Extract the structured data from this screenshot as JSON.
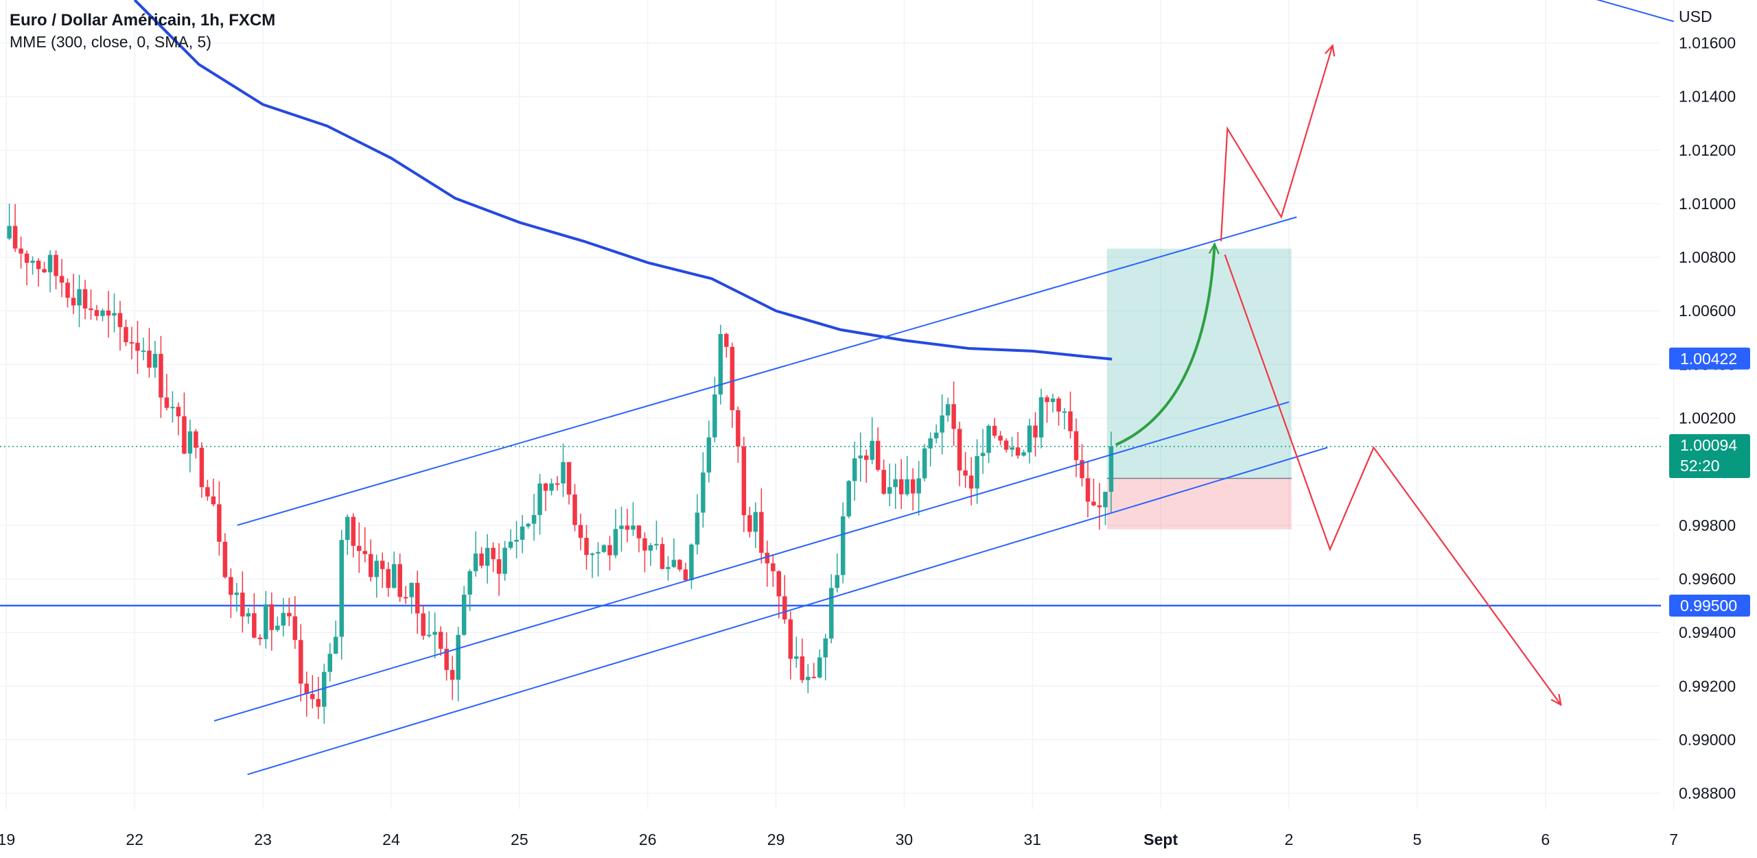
{
  "legend": {
    "title": "Euro / Dollar Américain, 1h, FXCM",
    "indicator": "MME (300, close, 0, SMA, 5)"
  },
  "colors": {
    "up": "#26a69a",
    "down": "#f23645",
    "ma": "#2449e0",
    "trendline": "#2962ff",
    "projection": "#f23645",
    "arrow_green": "#2ea043",
    "grid": "#f0f3fa",
    "target_zone": "#26a69a",
    "stop_zone": "#f23645"
  },
  "chart_data": {
    "type": "candlestick",
    "instrument": "Euro / Dollar Américain",
    "timeframe": "1h",
    "source": "FXCM",
    "y_axis": {
      "unit": "USD",
      "range": [
        0.9874,
        1.0176
      ],
      "ticks": [
        1.016,
        1.014,
        1.012,
        1.01,
        1.008,
        1.006,
        1.004,
        1.002,
        0.998,
        0.996,
        0.994,
        0.992,
        0.99,
        0.988
      ],
      "tick_labels": [
        "1.01600",
        "1.01400",
        "1.01200",
        "1.01000",
        "1.00800",
        "1.00600",
        "1.00400",
        "1.00200",
        "0.99800",
        "0.99600",
        "0.99400",
        "0.99200",
        "0.99000",
        "0.98800"
      ]
    },
    "x_axis": {
      "range": [
        -0.05,
        12.9
      ],
      "ticks": [
        {
          "pos": 0,
          "label": "19",
          "bold": false
        },
        {
          "pos": 1,
          "label": "22",
          "bold": false
        },
        {
          "pos": 2,
          "label": "23",
          "bold": false
        },
        {
          "pos": 3,
          "label": "24",
          "bold": false
        },
        {
          "pos": 4,
          "label": "25",
          "bold": false
        },
        {
          "pos": 5,
          "label": "26",
          "bold": false
        },
        {
          "pos": 6,
          "label": "29",
          "bold": false
        },
        {
          "pos": 7,
          "label": "30",
          "bold": false
        },
        {
          "pos": 8,
          "label": "31",
          "bold": false
        },
        {
          "pos": 9,
          "label": "Sept",
          "bold": true
        },
        {
          "pos": 10,
          "label": "2",
          "bold": false
        },
        {
          "pos": 11,
          "label": "5",
          "bold": false
        },
        {
          "pos": 12,
          "label": "6",
          "bold": false
        },
        {
          "pos": 13,
          "label": "7",
          "bold": false
        }
      ]
    },
    "grid": true,
    "price_tags": [
      {
        "label": "1.00422",
        "value": 1.00422,
        "color": "#2962ff",
        "sublabel": ""
      },
      {
        "label": "0.99500",
        "value": 0.995,
        "color": "#2962ff",
        "sublabel": ""
      },
      {
        "label": "1.00094",
        "value": 1.00094,
        "color": "#089981",
        "sublabel": "52:20"
      }
    ],
    "anchor_points": [
      {
        "t": 0.0,
        "p": 1.0087
      },
      {
        "t": 0.45,
        "p": 1.0072
      },
      {
        "t": 0.8,
        "p": 1.0055
      },
      {
        "t": 1.1,
        "p": 1.0047
      },
      {
        "t": 1.35,
        "p": 1.0015
      },
      {
        "t": 1.6,
        "p": 0.9995
      },
      {
        "t": 1.75,
        "p": 0.9955
      },
      {
        "t": 1.9,
        "p": 0.9945
      },
      {
        "t": 2.2,
        "p": 0.9942
      },
      {
        "t": 2.35,
        "p": 0.991
      },
      {
        "t": 2.58,
        "p": 0.9935
      },
      {
        "t": 2.62,
        "p": 0.9985
      },
      {
        "t": 2.85,
        "p": 0.9965
      },
      {
        "t": 3.05,
        "p": 0.996
      },
      {
        "t": 3.25,
        "p": 0.9945
      },
      {
        "t": 3.5,
        "p": 0.9925
      },
      {
        "t": 3.62,
        "p": 0.997
      },
      {
        "t": 3.8,
        "p": 0.9965
      },
      {
        "t": 4.1,
        "p": 0.9985
      },
      {
        "t": 4.3,
        "p": 1.0003
      },
      {
        "t": 4.55,
        "p": 0.997
      },
      {
        "t": 4.9,
        "p": 0.9975
      },
      {
        "t": 5.3,
        "p": 0.9965
      },
      {
        "t": 5.45,
        "p": 1.0005
      },
      {
        "t": 5.58,
        "p": 1.0055
      },
      {
        "t": 5.75,
        "p": 0.999
      },
      {
        "t": 5.95,
        "p": 0.9965
      },
      {
        "t": 6.1,
        "p": 0.9935
      },
      {
        "t": 6.25,
        "p": 0.992
      },
      {
        "t": 6.4,
        "p": 0.994
      },
      {
        "t": 6.55,
        "p": 0.999
      },
      {
        "t": 6.7,
        "p": 1.001
      },
      {
        "t": 6.85,
        "p": 0.9995
      },
      {
        "t": 7.1,
        "p": 0.9995
      },
      {
        "t": 7.3,
        "p": 1.0025
      },
      {
        "t": 7.5,
        "p": 0.9995
      },
      {
        "t": 7.7,
        "p": 1.0015
      },
      {
        "t": 7.9,
        "p": 1.0012
      },
      {
        "t": 8.2,
        "p": 1.003
      },
      {
        "t": 8.3,
        "p": 1.0012
      },
      {
        "t": 8.42,
        "p": 0.9985
      },
      {
        "t": 8.5,
        "p": 0.998
      },
      {
        "t": 8.62,
        "p": 1.0009
      }
    ],
    "moving_average": {
      "name": "MME (300, close, 0, SMA, 5)",
      "points": [
        {
          "t": 1.0,
          "p": 1.0176
        },
        {
          "t": 1.5,
          "p": 1.0152
        },
        {
          "t": 2.0,
          "p": 1.0137
        },
        {
          "t": 2.5,
          "p": 1.0129
        },
        {
          "t": 3.0,
          "p": 1.0117
        },
        {
          "t": 3.5,
          "p": 1.0102
        },
        {
          "t": 4.0,
          "p": 1.0093
        },
        {
          "t": 4.5,
          "p": 1.0086
        },
        {
          "t": 5.0,
          "p": 1.0078
        },
        {
          "t": 5.5,
          "p": 1.0072
        },
        {
          "t": 6.0,
          "p": 1.006
        },
        {
          "t": 6.5,
          "p": 1.0053
        },
        {
          "t": 7.0,
          "p": 1.0049
        },
        {
          "t": 7.5,
          "p": 1.0046
        },
        {
          "t": 8.0,
          "p": 1.0045
        },
        {
          "t": 8.4,
          "p": 1.0043
        },
        {
          "t": 8.62,
          "p": 1.0042
        }
      ]
    },
    "horizontal_line": {
      "value": 0.995
    },
    "current_price": 1.00094,
    "trendlines": [
      {
        "t1": 1.8,
        "p1": 0.998,
        "t2": 10.06,
        "p2": 1.0095
      },
      {
        "t1": 1.62,
        "p1": 0.9907,
        "t2": 10.0,
        "p2": 1.0026
      },
      {
        "t1": 1.88,
        "p1": 0.9887,
        "t2": 10.3,
        "p2": 1.0009
      },
      {
        "t1": 11.9,
        "p1": 1.0183,
        "t2": 13.0,
        "p2": 1.0168
      }
    ],
    "position_tool": {
      "t_start": 8.58,
      "t_end": 10.02,
      "entry": 0.99975,
      "target": 1.00832,
      "stop": 0.99785
    },
    "projection_paths": [
      {
        "points": [
          {
            "t": 9.47,
            "p": 1.0086
          },
          {
            "t": 9.52,
            "p": 1.0128
          },
          {
            "t": 9.94,
            "p": 1.0095
          },
          {
            "t": 10.34,
            "p": 1.0159
          }
        ],
        "arrow": true
      },
      {
        "points": [
          {
            "t": 9.5,
            "p": 1.0081
          },
          {
            "t": 10.32,
            "p": 0.9971
          },
          {
            "t": 10.66,
            "p": 1.0009
          },
          {
            "t": 12.12,
            "p": 0.9913
          }
        ],
        "arrow": true
      }
    ],
    "curved_arrow": {
      "start": {
        "t": 8.65,
        "p": 1.001
      },
      "control": {
        "t": 9.35,
        "p": 1.0025
      },
      "end": {
        "t": 9.42,
        "p": 1.0085
      }
    }
  }
}
